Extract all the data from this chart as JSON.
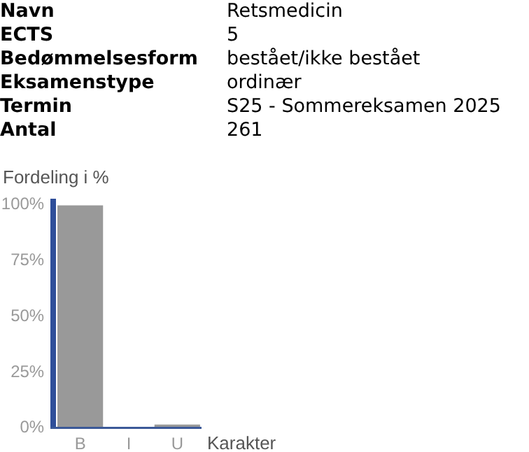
{
  "chart_data": [
    {
      "type": "other",
      "annotations": [
        "Navn",
        "Retsmedicin",
        "ECTS",
        "5",
        "Bedømmelsesform",
        "bestået/ikke bestået",
        "Eksamenstype",
        "ordinær",
        "Termin",
        "S25 - Sommereksamen 2025",
        "Antal",
        "261"
      ]
    },
    {
      "type": "bar",
      "ylabel": "Fordeling i %",
      "xlabel": "Karakter",
      "categories": [
        "B",
        "I",
        "U"
      ],
      "values": [
        99,
        0,
        1
      ],
      "color": "#999999",
      "ylim": [
        0,
        102
      ],
      "yticks": [
        {
          "value": 0,
          "label": "0%"
        },
        {
          "value": 25,
          "label": "25%"
        },
        {
          "value": 50,
          "label": "50%"
        },
        {
          "value": 75,
          "label": "75%"
        },
        {
          "value": 100,
          "label": "100%"
        }
      ],
      "grid": false
    }
  ]
}
